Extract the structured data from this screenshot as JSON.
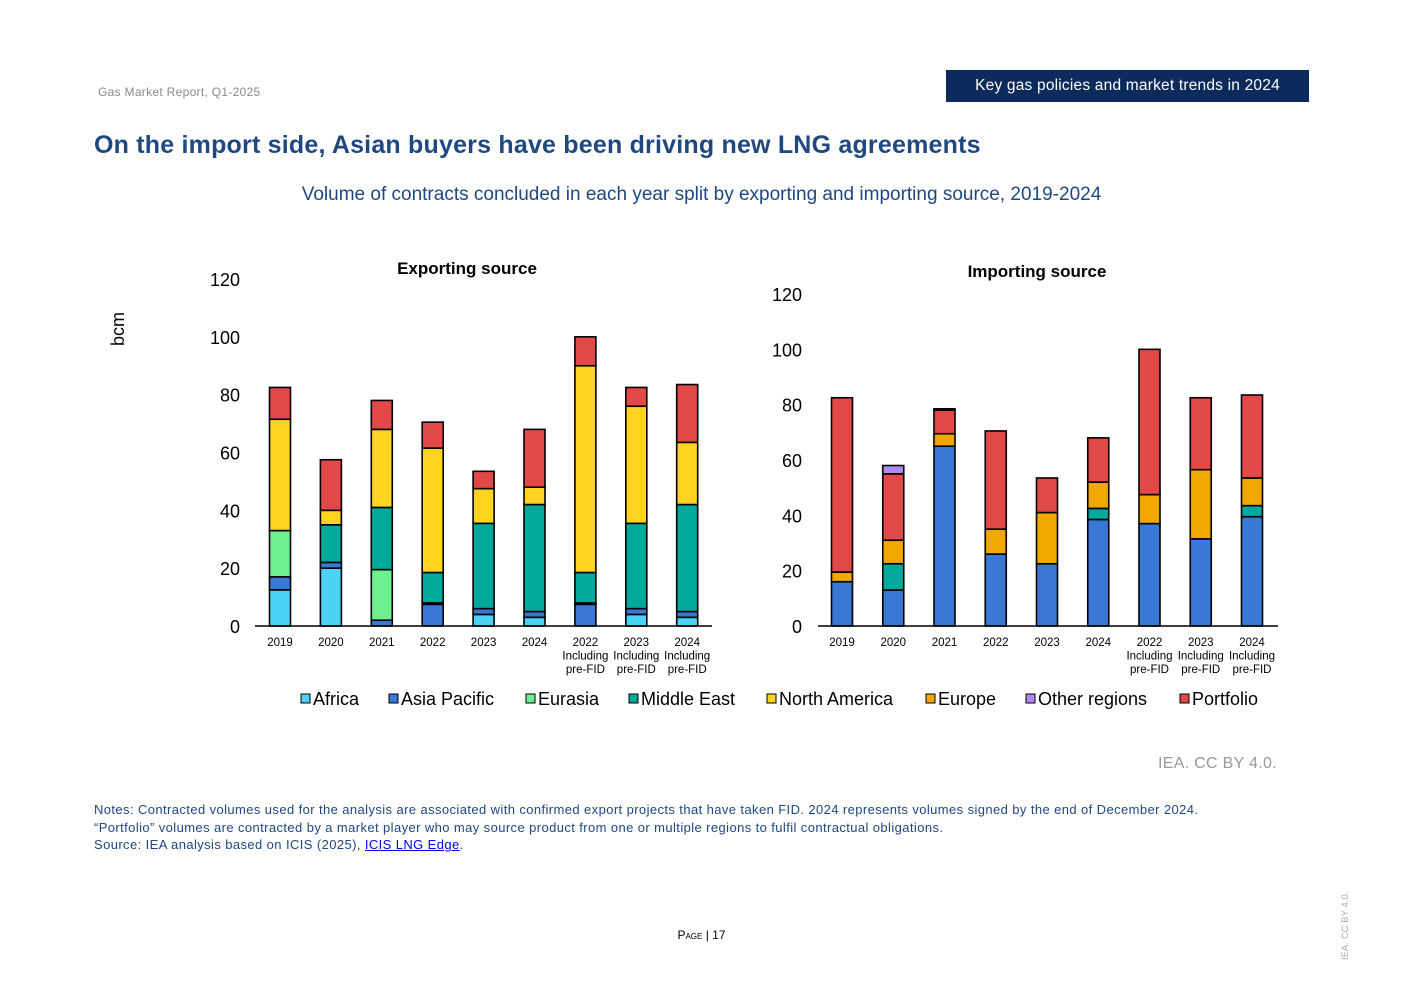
{
  "header": {
    "report": "Gas Market Report, Q1-2025",
    "section": "Key gas policies and market trends in 2024"
  },
  "title": "On the import side, Asian buyers have been driving new LNG agreements",
  "subtitle": "Volume of contracts concluded in each year split by exporting and importing source, 2019-2024",
  "credit": "IEA. CC BY 4.0.",
  "notes": {
    "line1": "Notes: Contracted volumes used for the analysis are associated with confirmed export projects that have taken FID. 2024 represents volumes signed by the end of December 2024.",
    "line2": "“Portfolio” volumes are contracted by a market player who may source product from one or multiple regions to fulfil contractual obligations.",
    "source_prefix": "Source: IEA analysis based on ICIS (2025), ",
    "source_link": "ICIS LNG Edge",
    "source_suffix": "."
  },
  "footer": {
    "page_label": "Page",
    "page_sep": " | ",
    "page_number": "17",
    "vertical_credit": "IEA. CC BY 4.0."
  },
  "colors": {
    "Africa": "#4dd2f7",
    "Asia Pacific": "#3a78d6",
    "Eurasia": "#6ef08e",
    "Middle East": "#00a99a",
    "North America": "#ffd321",
    "Europe": "#f0a800",
    "Other regions": "#b08af0",
    "Portfolio": "#e34848"
  },
  "legend": [
    "Africa",
    "Asia Pacific",
    "Eurasia",
    "Middle East",
    "North America",
    "Europe",
    "Other regions",
    "Portfolio"
  ],
  "chart_data": [
    {
      "type": "bar",
      "stacked": true,
      "title": "Exporting source",
      "ylabel": "bcm",
      "ylim": [
        0,
        120
      ],
      "yticks": [
        0,
        20,
        40,
        60,
        80,
        100,
        120
      ],
      "grid": false,
      "categories": [
        "2019",
        "2020",
        "2021",
        "2022",
        "2023",
        "2024",
        "2022 Including pre-FID",
        "2023 Including pre-FID",
        "2024 Including pre-FID"
      ],
      "series": [
        {
          "name": "Africa",
          "values": [
            12.5,
            20,
            0,
            0,
            4,
            3,
            0,
            4,
            3
          ]
        },
        {
          "name": "Asia Pacific",
          "values": [
            4.5,
            2,
            2,
            7.5,
            2,
            2,
            7.5,
            2,
            2
          ]
        },
        {
          "name": "Eurasia",
          "values": [
            16,
            0,
            17.5,
            0.5,
            0,
            0,
            0.5,
            0,
            0
          ]
        },
        {
          "name": "Middle East",
          "values": [
            0,
            13,
            21.5,
            10.5,
            29.5,
            37,
            10.5,
            29.5,
            37
          ]
        },
        {
          "name": "North America",
          "values": [
            38.5,
            5,
            27,
            43,
            12,
            6,
            71.5,
            40.5,
            21.5
          ]
        },
        {
          "name": "Portfolio",
          "values": [
            11,
            17.5,
            10,
            9,
            6,
            20,
            10,
            6.5,
            20
          ]
        }
      ]
    },
    {
      "type": "bar",
      "stacked": true,
      "title": "Importing source",
      "ylim": [
        0,
        120
      ],
      "yticks": [
        0,
        20,
        40,
        60,
        80,
        100,
        120
      ],
      "grid": false,
      "categories": [
        "2019",
        "2020",
        "2021",
        "2022",
        "2023",
        "2024",
        "2022 Including pre-FID",
        "2023 Including pre-FID",
        "2024 Including pre-FID"
      ],
      "series": [
        {
          "name": "Asia Pacific",
          "values": [
            16,
            13,
            65,
            26,
            22.5,
            38.5,
            37,
            31.5,
            39.5
          ]
        },
        {
          "name": "Middle East",
          "values": [
            0,
            9.5,
            0,
            0,
            0,
            4,
            0,
            0,
            4
          ]
        },
        {
          "name": "Europe",
          "values": [
            3.5,
            8.5,
            4.5,
            9,
            18.5,
            9.5,
            10.5,
            25,
            10
          ]
        },
        {
          "name": "Portfolio",
          "values": [
            63,
            24,
            8.5,
            35.5,
            12.5,
            16,
            52.5,
            26,
            30
          ]
        },
        {
          "name": "Other regions",
          "values": [
            0,
            3,
            0.5,
            0,
            0,
            0,
            0,
            0,
            0
          ]
        }
      ]
    }
  ]
}
